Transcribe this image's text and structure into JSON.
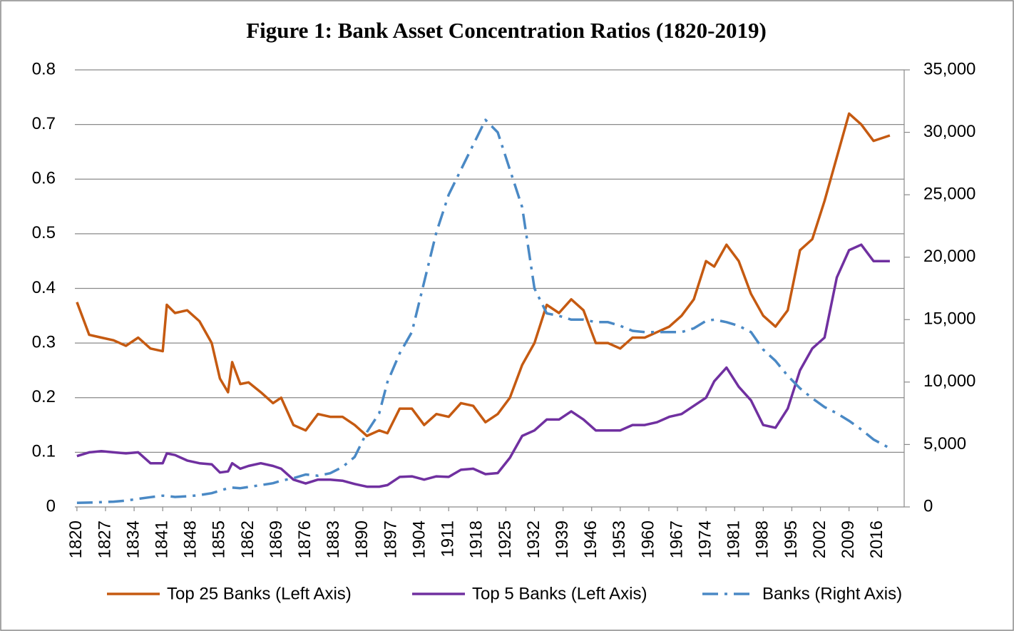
{
  "chart_data": {
    "type": "line",
    "title": "Figure 1: Bank Asset Concentration Ratios (1820-2019)",
    "x": [
      1820,
      1823,
      1826,
      1829,
      1832,
      1835,
      1838,
      1841,
      1842,
      1844,
      1847,
      1850,
      1853,
      1855,
      1857,
      1858,
      1860,
      1862,
      1865,
      1868,
      1870,
      1873,
      1876,
      1879,
      1882,
      1885,
      1888,
      1891,
      1894,
      1896,
      1899,
      1902,
      1905,
      1908,
      1911,
      1914,
      1917,
      1920,
      1923,
      1926,
      1929,
      1932,
      1935,
      1938,
      1941,
      1944,
      1947,
      1950,
      1953,
      1956,
      1959,
      1962,
      1965,
      1968,
      1971,
      1974,
      1976,
      1979,
      1982,
      1985,
      1988,
      1991,
      1994,
      1997,
      2000,
      2003,
      2006,
      2009,
      2012,
      2015,
      2019
    ],
    "xlim": [
      1819.5,
      2022.5
    ],
    "xticks": [
      1820,
      1827,
      1834,
      1841,
      1848,
      1855,
      1862,
      1869,
      1876,
      1883,
      1890,
      1897,
      1904,
      1911,
      1918,
      1925,
      1932,
      1939,
      1946,
      1953,
      1960,
      1967,
      1974,
      1981,
      1988,
      1995,
      2002,
      2009,
      2016
    ],
    "ylim": [
      0,
      0.8
    ],
    "yticks": [
      0,
      0.1,
      0.2,
      0.3,
      0.4,
      0.5,
      0.6,
      0.7,
      0.8
    ],
    "y2lim": [
      0,
      35000
    ],
    "y2ticks": [
      0,
      {
        "value": 5000,
        "label": "5,000"
      },
      {
        "value": 10000,
        "label": "10,000"
      },
      {
        "value": 15000,
        "label": "15,000"
      },
      {
        "value": 20000,
        "label": "20,000"
      },
      {
        "value": 25000,
        "label": "25,000"
      },
      {
        "value": 30000,
        "label": "30,000"
      },
      {
        "value": 35000,
        "label": "35,000"
      }
    ],
    "grid": true,
    "legend": "bottom",
    "series": [
      {
        "name": "Top 25 Banks (Left Axis)",
        "color": "#c55a11",
        "line_style": "solid",
        "values": [
          0.375,
          0.315,
          0.31,
          0.305,
          0.295,
          0.31,
          0.29,
          0.285,
          0.37,
          0.355,
          0.36,
          0.34,
          0.3,
          0.235,
          0.21,
          0.265,
          0.225,
          0.228,
          0.21,
          0.19,
          0.2,
          0.15,
          0.14,
          0.17,
          0.165,
          0.165,
          0.15,
          0.13,
          0.14,
          0.135,
          0.18,
          0.18,
          0.15,
          0.17,
          0.165,
          0.19,
          0.185,
          0.155,
          0.17,
          0.2,
          0.26,
          0.3,
          0.37,
          0.355,
          0.38,
          0.36,
          0.3,
          0.3,
          0.29,
          0.31,
          0.31,
          0.32,
          0.33,
          0.35,
          0.38,
          0.45,
          0.44,
          0.48,
          0.45,
          0.39,
          0.35,
          0.33,
          0.36,
          0.47,
          0.49,
          0.56,
          0.64,
          0.72,
          0.7,
          0.67,
          0.68
        ]
      },
      {
        "name": "Top 5 Banks (Left Axis)",
        "color": "#7030a0",
        "line_style": "solid",
        "values": [
          0.093,
          0.1,
          0.102,
          0.1,
          0.098,
          0.1,
          0.08,
          0.08,
          0.098,
          0.095,
          0.085,
          0.08,
          0.078,
          0.063,
          0.065,
          0.08,
          0.07,
          0.075,
          0.08,
          0.075,
          0.07,
          0.05,
          0.043,
          0.05,
          0.05,
          0.048,
          0.042,
          0.037,
          0.037,
          0.04,
          0.055,
          0.056,
          0.05,
          0.056,
          0.055,
          0.068,
          0.07,
          0.06,
          0.062,
          0.09,
          0.13,
          0.14,
          0.16,
          0.16,
          0.175,
          0.16,
          0.14,
          0.14,
          0.14,
          0.15,
          0.15,
          0.155,
          0.165,
          0.17,
          0.185,
          0.2,
          0.23,
          0.255,
          0.22,
          0.195,
          0.15,
          0.145,
          0.18,
          0.25,
          0.29,
          0.31,
          0.42,
          0.47,
          0.48,
          0.45,
          0.45
        ]
      },
      {
        "name": "Banks (Right Axis)",
        "color": "#4a89c5",
        "line_style": "dash-dot",
        "axis": "y2",
        "values": [
          330,
          350,
          380,
          420,
          500,
          650,
          780,
          900,
          880,
          800,
          850,
          950,
          1100,
          1300,
          1500,
          1550,
          1500,
          1600,
          1750,
          1900,
          2100,
          2300,
          2600,
          2500,
          2700,
          3200,
          4000,
          6000,
          7500,
          10000,
          12300,
          14000,
          18000,
          22000,
          25000,
          27000,
          29000,
          31000,
          30000,
          27000,
          24000,
          17500,
          15500,
          15300,
          15000,
          15000,
          14800,
          14800,
          14500,
          14100,
          14000,
          14000,
          14000,
          14000,
          14300,
          14900,
          15000,
          14800,
          14500,
          14000,
          12600,
          11700,
          10500,
          9500,
          8700,
          8000,
          7500,
          6900,
          6200,
          5400,
          4700
        ]
      }
    ]
  }
}
